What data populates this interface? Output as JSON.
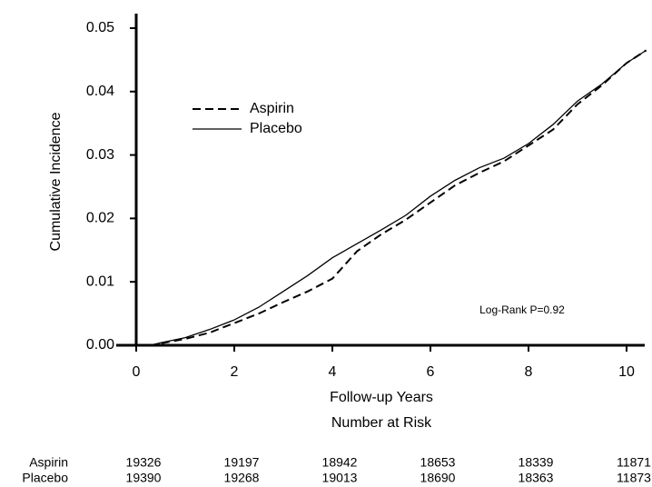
{
  "chart_data": {
    "type": "line",
    "y_label": "Cumulative Incidence",
    "x_label": "Follow-up Years",
    "annotation": "Log-Rank P=0.92",
    "xlim": [
      -0.4,
      10.4
    ],
    "xticks": [
      0,
      2,
      4,
      6,
      8,
      10
    ],
    "ylim": [
      0,
      0.052
    ],
    "yticks": [
      {
        "value": 0,
        "label": "0.00"
      },
      0.01,
      0.02,
      0.03,
      0.04,
      0.05
    ],
    "x": [
      0,
      0.3,
      0.5,
      1,
      1.5,
      2,
      2.5,
      3,
      3.5,
      4,
      4.5,
      5,
      5.5,
      6,
      6.5,
      7,
      7.5,
      8,
      8.5,
      9,
      9.5,
      10,
      10.4
    ],
    "series": [
      {
        "name": "Aspirin",
        "color": "#000000",
        "line_style": "dashed",
        "values": [
          0,
          0,
          0.0003,
          0.001,
          0.002,
          0.0035,
          0.005,
          0.0068,
          0.0085,
          0.0105,
          0.0148,
          0.0175,
          0.0198,
          0.0225,
          0.0252,
          0.0272,
          0.029,
          0.0315,
          0.034,
          0.038,
          0.041,
          0.0445,
          0.0465
        ]
      },
      {
        "name": "Placebo",
        "color": "#000000",
        "line_style": "solid",
        "values": [
          0,
          0,
          0.0004,
          0.0012,
          0.0025,
          0.004,
          0.006,
          0.0085,
          0.011,
          0.0138,
          0.016,
          0.0182,
          0.0205,
          0.0235,
          0.026,
          0.028,
          0.0295,
          0.0318,
          0.0348,
          0.0385,
          0.0412,
          0.0445,
          0.0465
        ]
      }
    ],
    "risk_table": {
      "title": "Number at Risk",
      "rows": [
        {
          "name": "Aspirin",
          "counts": [
            19326,
            19197,
            18942,
            18653,
            18339,
            11871
          ]
        },
        {
          "name": "Placebo",
          "counts": [
            19390,
            19268,
            19013,
            18690,
            18363,
            11873
          ]
        }
      ]
    }
  }
}
